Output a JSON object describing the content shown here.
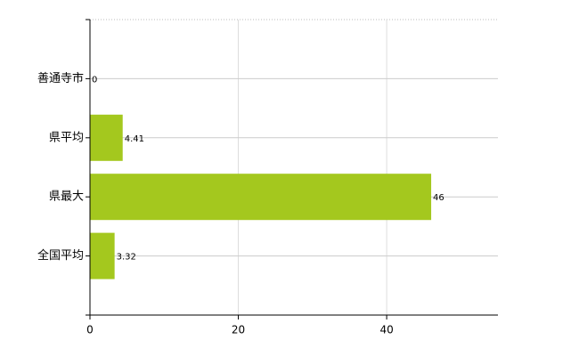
{
  "chart_data": {
    "type": "hbar",
    "categories": [
      "善通寺市",
      "県平均",
      "県最大",
      "全国平均"
    ],
    "values": [
      0,
      4.41,
      46,
      3.32
    ],
    "color": "#a4c81e",
    "xlim": [
      0,
      55
    ],
    "xticks": [
      0,
      20,
      40
    ],
    "grid": true
  }
}
